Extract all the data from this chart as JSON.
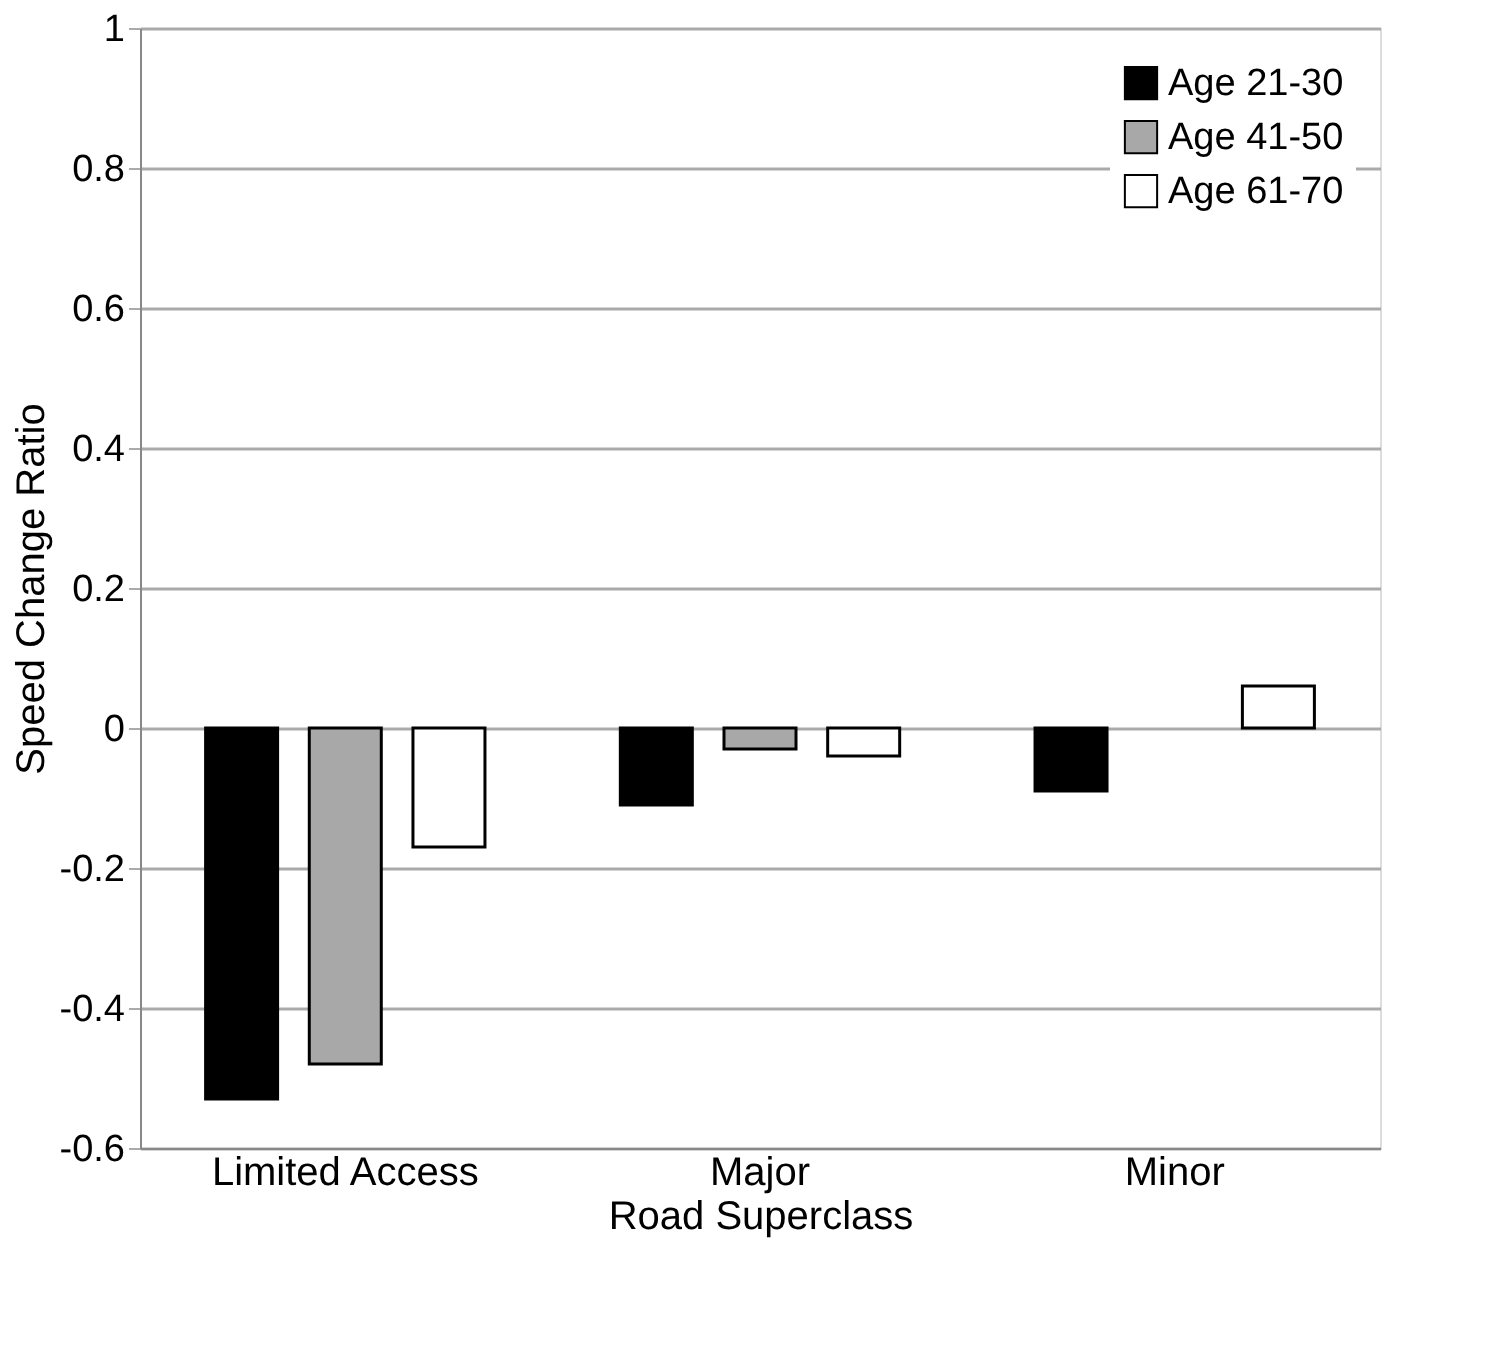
{
  "chart_data": {
    "type": "bar",
    "xlabel": "Road Superclass",
    "ylabel": "Speed Change Ratio",
    "categories": [
      "Limited Access",
      "Major",
      "Minor"
    ],
    "series": [
      {
        "name": "Age 21-30",
        "color": "#000000",
        "values": [
          -0.53,
          -0.11,
          -0.09
        ]
      },
      {
        "name": "Age 41-50",
        "color": "#a8a8a8",
        "values": [
          -0.48,
          -0.03,
          null
        ]
      },
      {
        "name": "Age 61-70",
        "color": "#ffffff",
        "values": [
          -0.17,
          -0.04,
          0.06
        ]
      }
    ],
    "ylim": [
      -0.6,
      1
    ],
    "yticks": [
      -0.6,
      -0.4,
      -0.2,
      0,
      0.2,
      0.4,
      0.6,
      0.8,
      1
    ],
    "grid": "y",
    "legend": "top right"
  }
}
